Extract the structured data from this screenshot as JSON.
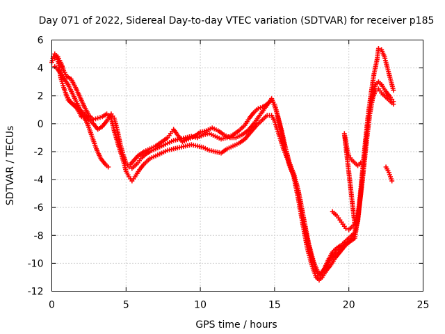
{
  "chart_data": {
    "type": "scatter",
    "title": "Day 071 of 2022, Sidereal Day-to-day VTEC variation (SDTVAR) for receiver p185",
    "xlabel": "GPS time / hours",
    "ylabel": "SDTVAR / TECUs",
    "xlim": [
      0,
      25
    ],
    "ylim": [
      -12,
      6
    ],
    "x_ticks": [
      0,
      5,
      10,
      15,
      20,
      25
    ],
    "y_ticks": [
      -12,
      -10,
      -8,
      -6,
      -4,
      -2,
      0,
      2,
      4,
      6
    ],
    "grid": true,
    "marker": "plus",
    "color": "#ff0000",
    "series": [
      {
        "points": [
          [
            0,
            4.4
          ],
          [
            0.1,
            4.8
          ],
          [
            0.2,
            5.0
          ],
          [
            0.3,
            4.9
          ],
          [
            0.4,
            4.6
          ],
          [
            0.5,
            4.0
          ],
          [
            0.6,
            3.3
          ],
          [
            0.8,
            2.6
          ],
          [
            1.0,
            2.0
          ],
          [
            1.3,
            1.5
          ],
          [
            1.6,
            1.3
          ],
          [
            1.9,
            1.0
          ],
          [
            2.2,
            0.7
          ],
          [
            2.5,
            0.3
          ],
          [
            2.8,
            0.0
          ],
          [
            3.1,
            -0.4
          ],
          [
            3.4,
            -0.2
          ],
          [
            3.7,
            0.2
          ],
          [
            4.0,
            0.7
          ],
          [
            4.2,
            0.4
          ],
          [
            4.4,
            -0.4
          ],
          [
            4.6,
            -1.4
          ],
          [
            4.8,
            -2.2
          ],
          [
            5.0,
            -2.8
          ],
          [
            5.2,
            -3.1
          ],
          [
            5.4,
            -3.2
          ],
          [
            5.6,
            -3.0
          ],
          [
            5.8,
            -2.8
          ],
          [
            6.0,
            -2.5
          ],
          [
            6.3,
            -2.2
          ],
          [
            6.6,
            -2.0
          ],
          [
            7.0,
            -1.8
          ],
          [
            7.4,
            -1.6
          ],
          [
            7.8,
            -1.4
          ],
          [
            8.2,
            -1.2
          ],
          [
            8.6,
            -1.1
          ],
          [
            9.0,
            -1.0
          ],
          [
            9.4,
            -0.9
          ],
          [
            9.8,
            -1.0
          ],
          [
            10.2,
            -0.8
          ],
          [
            10.6,
            -0.7
          ],
          [
            11.0,
            -0.9
          ],
          [
            11.4,
            -1.1
          ],
          [
            11.8,
            -1.0
          ],
          [
            12.2,
            -0.8
          ],
          [
            12.6,
            -0.5
          ],
          [
            13.0,
            -0.1
          ],
          [
            13.3,
            0.4
          ],
          [
            13.6,
            0.8
          ],
          [
            13.9,
            1.1
          ],
          [
            14.2,
            1.2
          ],
          [
            14.5,
            1.4
          ],
          [
            14.8,
            1.7
          ],
          [
            15.0,
            1.4
          ],
          [
            15.2,
            0.6
          ],
          [
            15.4,
            -0.3
          ],
          [
            15.6,
            -1.3
          ],
          [
            15.8,
            -2.0
          ],
          [
            16.0,
            -2.8
          ],
          [
            16.3,
            -3.6
          ],
          [
            16.6,
            -4.8
          ],
          [
            16.9,
            -6.6
          ],
          [
            17.2,
            -8.3
          ],
          [
            17.5,
            -9.6
          ],
          [
            17.8,
            -10.6
          ],
          [
            18.0,
            -10.9
          ],
          [
            18.2,
            -10.6
          ],
          [
            18.5,
            -10.2
          ],
          [
            18.8,
            -9.7
          ],
          [
            19.1,
            -9.3
          ],
          [
            19.4,
            -9.0
          ],
          [
            19.7,
            -8.7
          ],
          [
            20.0,
            -8.5
          ],
          [
            20.3,
            -8.2
          ],
          [
            20.5,
            -7.4
          ],
          [
            20.7,
            -5.8
          ],
          [
            20.9,
            -3.6
          ],
          [
            21.1,
            -1.4
          ],
          [
            21.3,
            0.6
          ],
          [
            21.5,
            2.2
          ],
          [
            21.7,
            3.6
          ],
          [
            21.9,
            4.6
          ],
          [
            22.0,
            5.4
          ],
          [
            22.2,
            5.3
          ],
          [
            22.4,
            4.8
          ],
          [
            22.6,
            4.0
          ],
          [
            22.8,
            3.2
          ],
          [
            23.0,
            2.4
          ]
        ]
      },
      {
        "points": [
          [
            0.2,
            4.7
          ],
          [
            0.4,
            4.8
          ],
          [
            0.6,
            4.4
          ],
          [
            0.8,
            3.8
          ],
          [
            1.0,
            3.4
          ],
          [
            1.3,
            3.2
          ],
          [
            1.6,
            2.6
          ],
          [
            1.9,
            1.9
          ],
          [
            2.2,
            1.2
          ],
          [
            2.5,
            0.6
          ],
          [
            2.8,
            0.3
          ],
          [
            3.1,
            0.4
          ],
          [
            3.4,
            0.5
          ],
          [
            3.7,
            0.7
          ],
          [
            4.0,
            0.4
          ],
          [
            4.2,
            -0.5
          ],
          [
            4.5,
            -1.6
          ],
          [
            4.8,
            -2.6
          ],
          [
            5.0,
            -3.4
          ],
          [
            5.2,
            -3.8
          ],
          [
            5.4,
            -4.1
          ],
          [
            5.6,
            -3.8
          ],
          [
            5.9,
            -3.3
          ],
          [
            6.2,
            -2.9
          ],
          [
            6.6,
            -2.5
          ],
          [
            7.0,
            -2.3
          ],
          [
            7.4,
            -2.1
          ],
          [
            7.8,
            -1.9
          ],
          [
            8.2,
            -1.8
          ],
          [
            8.6,
            -1.7
          ],
          [
            9.0,
            -1.6
          ],
          [
            9.4,
            -1.5
          ],
          [
            9.8,
            -1.6
          ],
          [
            10.2,
            -1.7
          ],
          [
            10.6,
            -1.9
          ],
          [
            11.0,
            -2.0
          ],
          [
            11.4,
            -2.1
          ],
          [
            11.8,
            -1.8
          ],
          [
            12.2,
            -1.6
          ],
          [
            12.6,
            -1.4
          ],
          [
            13.0,
            -1.1
          ],
          [
            13.4,
            -0.6
          ],
          [
            13.8,
            -0.1
          ],
          [
            14.2,
            0.3
          ],
          [
            14.5,
            0.6
          ],
          [
            14.8,
            0.6
          ],
          [
            15.0,
            0.2
          ],
          [
            15.3,
            -0.8
          ],
          [
            15.6,
            -1.8
          ],
          [
            16.0,
            -2.9
          ],
          [
            16.3,
            -3.8
          ],
          [
            16.6,
            -5.4
          ],
          [
            16.9,
            -7.2
          ],
          [
            17.2,
            -8.9
          ],
          [
            17.5,
            -10.1
          ],
          [
            17.8,
            -11.0
          ],
          [
            18.0,
            -11.2
          ],
          [
            18.2,
            -11.0
          ],
          [
            18.5,
            -10.5
          ],
          [
            18.8,
            -10.1
          ],
          [
            19.1,
            -9.6
          ],
          [
            19.4,
            -9.2
          ],
          [
            19.7,
            -8.8
          ],
          [
            20.0,
            -8.5
          ],
          [
            20.4,
            -8.2
          ],
          [
            20.6,
            -6.8
          ],
          [
            20.9,
            -4.2
          ],
          [
            21.2,
            -1.2
          ],
          [
            21.4,
            0.6
          ],
          [
            21.6,
            1.8
          ],
          [
            21.8,
            2.4
          ],
          [
            22.0,
            2.5
          ],
          [
            22.2,
            2.2
          ],
          [
            22.5,
            1.9
          ],
          [
            22.8,
            1.6
          ],
          [
            23.0,
            1.4
          ]
        ]
      },
      {
        "points": [
          [
            0.2,
            4.1
          ],
          [
            0.4,
            3.9
          ],
          [
            1.1,
            2.8
          ],
          [
            1.6,
            1.7
          ],
          [
            2.0,
            0.8
          ],
          [
            2.4,
            0.0
          ],
          [
            2.7,
            -0.9
          ],
          [
            3.0,
            -1.8
          ],
          [
            3.3,
            -2.5
          ],
          [
            3.6,
            -2.9
          ],
          [
            3.8,
            -3.1
          ],
          [
            5.3,
            -2.9
          ],
          [
            5.8,
            -2.3
          ],
          [
            6.2,
            -2.0
          ],
          [
            6.6,
            -1.8
          ],
          [
            7.0,
            -1.6
          ],
          [
            7.4,
            -1.3
          ],
          [
            7.8,
            -1.0
          ],
          [
            8.0,
            -0.7
          ],
          [
            8.2,
            -0.4
          ],
          [
            8.8,
            -1.3
          ],
          [
            9.2,
            -1.1
          ],
          [
            9.6,
            -0.9
          ],
          [
            10.0,
            -0.6
          ],
          [
            10.4,
            -0.5
          ],
          [
            10.8,
            -0.3
          ],
          [
            11.2,
            -0.5
          ],
          [
            11.6,
            -0.8
          ],
          [
            12.0,
            -1.0
          ],
          [
            12.4,
            -1.0
          ],
          [
            12.8,
            -0.8
          ],
          [
            13.2,
            -0.5
          ],
          [
            13.6,
            0.0
          ],
          [
            14.0,
            0.6
          ],
          [
            14.4,
            1.2
          ],
          [
            14.8,
            1.8
          ],
          [
            15.1,
            1.0
          ],
          [
            15.5,
            -0.6
          ],
          [
            16.0,
            -3.0
          ],
          [
            16.4,
            -4.0
          ],
          [
            16.7,
            -5.3
          ],
          [
            17.0,
            -7.0
          ],
          [
            17.3,
            -8.6
          ],
          [
            17.6,
            -9.8
          ],
          [
            17.9,
            -10.6
          ],
          [
            18.1,
            -10.8
          ],
          [
            18.3,
            -10.5
          ],
          [
            18.6,
            -9.8
          ],
          [
            18.9,
            -9.2
          ],
          [
            19.2,
            -8.9
          ],
          [
            19.5,
            -8.7
          ],
          [
            19.8,
            -8.4
          ],
          [
            20.1,
            -8.1
          ],
          [
            20.4,
            -7.8
          ],
          [
            20.6,
            -7.0
          ],
          [
            20.8,
            -5.0
          ],
          [
            21.0,
            -2.8
          ],
          [
            21.2,
            -0.8
          ],
          [
            21.4,
            1.0
          ],
          [
            21.6,
            2.1
          ],
          [
            21.8,
            2.8
          ],
          [
            22.0,
            3.0
          ],
          [
            22.2,
            2.8
          ],
          [
            22.5,
            2.3
          ],
          [
            22.8,
            1.9
          ],
          [
            23.0,
            1.6
          ]
        ]
      },
      {
        "points": [
          [
            18.9,
            -6.3
          ],
          [
            19.2,
            -6.6
          ],
          [
            19.4,
            -6.9
          ],
          [
            19.6,
            -7.2
          ],
          [
            19.8,
            -7.5
          ],
          [
            20.0,
            -7.6
          ],
          [
            20.2,
            -7.4
          ],
          [
            20.4,
            -7.2
          ],
          [
            19.7,
            -0.7
          ],
          [
            19.8,
            -1.3
          ],
          [
            19.9,
            -1.9
          ],
          [
            20.0,
            -2.3
          ],
          [
            20.2,
            -2.6
          ],
          [
            20.4,
            -2.8
          ],
          [
            20.6,
            -3.0
          ],
          [
            20.8,
            -2.8
          ],
          [
            22.5,
            -3.1
          ],
          [
            22.7,
            -3.5
          ],
          [
            22.8,
            -3.8
          ],
          [
            22.9,
            -4.1
          ],
          [
            1.0,
            2.0
          ],
          [
            1.1,
            1.7
          ],
          [
            1.7,
            1.1
          ],
          [
            2.0,
            0.5
          ],
          [
            0.5,
            4.4
          ],
          [
            0.7,
            4.1
          ]
        ]
      }
    ]
  }
}
